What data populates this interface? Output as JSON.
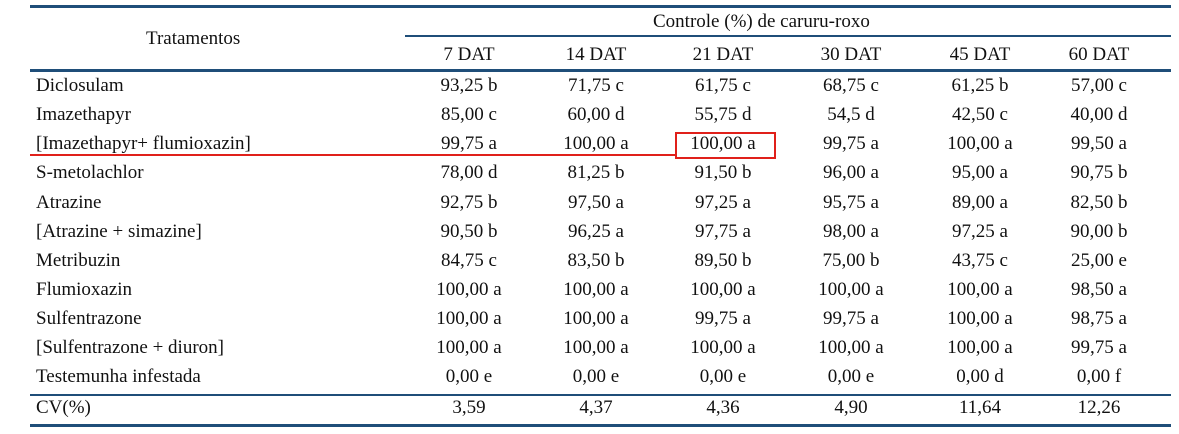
{
  "header": {
    "treatments_label": "Tratamentos",
    "group_label": "Controle (%) de caruru-roxo",
    "columns": [
      "7 DAT",
      "14 DAT",
      "21 DAT",
      "30 DAT",
      "45 DAT",
      "60 DAT"
    ]
  },
  "rows": [
    {
      "name": "Diclosulam",
      "values": [
        "93,25 b",
        "71,75 c",
        "61,75 c",
        "68,75 c",
        "61,25 b",
        "57,00 c"
      ]
    },
    {
      "name": "Imazethapyr",
      "values": [
        "85,00 c",
        "60,00 d",
        "55,75 d",
        "54,5 d",
        "42,50 c",
        "40,00 d"
      ]
    },
    {
      "name": "[Imazethapyr+ flumioxazin]",
      "values": [
        "99,75 a",
        "100,00 a",
        "100,00 a",
        "99,75 a",
        "100,00 a",
        "99,50 a"
      ]
    },
    {
      "name": "S-metolachlor",
      "values": [
        "78,00 d",
        "81,25 b",
        "91,50 b",
        "96,00 a",
        "95,00 a",
        "90,75 b"
      ]
    },
    {
      "name": "Atrazine",
      "values": [
        "92,75 b",
        "97,50 a",
        "97,25 a",
        "95,75 a",
        "89,00 a",
        "82,50 b"
      ]
    },
    {
      "name": "[Atrazine + simazine]",
      "values": [
        "90,50 b",
        "96,25 a",
        "97,75 a",
        "98,00 a",
        "97,25 a",
        "90,00 b"
      ]
    },
    {
      "name": "Metribuzin",
      "values": [
        "84,75 c",
        "83,50 b",
        "89,50 b",
        "75,00 b",
        "43,75 c",
        "25,00 e"
      ]
    },
    {
      "name": "Flumioxazin",
      "values": [
        "100,00 a",
        "100,00 a",
        "100,00 a",
        "100,00 a",
        "100,00 a",
        "98,50 a"
      ]
    },
    {
      "name": "Sulfentrazone",
      "values": [
        "100,00 a",
        "100,00 a",
        "99,75 a",
        "99,75 a",
        "100,00 a",
        "98,75 a"
      ]
    },
    {
      "name": "[Sulfentrazone + diuron]",
      "values": [
        "100,00 a",
        "100,00 a",
        "100,00 a",
        "100,00 a",
        "100,00 a",
        "99,75 a"
      ]
    },
    {
      "name": "Testemunha infestada",
      "values": [
        "0,00 e",
        "0,00 e",
        "0,00 e",
        "0,00 e",
        "0,00 d",
        "0,00 f"
      ]
    }
  ],
  "cv_row": {
    "name": "CV(%)",
    "values": [
      "3,59",
      "4,37",
      "4,36",
      "4,90",
      "11,64",
      "12,26"
    ]
  },
  "colors": {
    "rule": "#1f4e79",
    "highlight": "#e0201a"
  }
}
